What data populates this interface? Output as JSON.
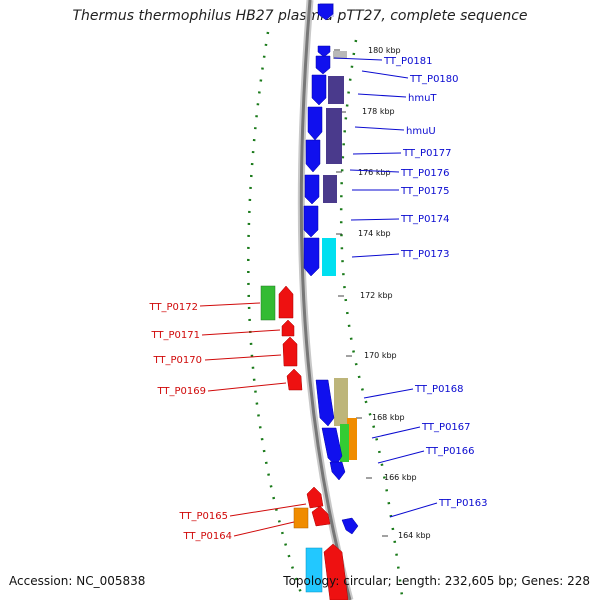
{
  "title": "Thermus thermophilus HB27 plasmid pTT27, complete sequence",
  "accession": "Accession: NC_005838",
  "stats": "Topology: circular; Length: 232,605 bp; Genes: 228",
  "colors": {
    "forward_label": "#0a0ad0",
    "reverse_label": "#d00a0a",
    "gc_skew": "#1a7a1a",
    "backbone": "#888888"
  },
  "tick_labels": [
    "180 kbp",
    "178 kbp",
    "176 kbp",
    "174 kbp",
    "172 kbp",
    "170 kbp",
    "168 kbp",
    "166 kbp",
    "164 kbp"
  ],
  "forward_genes": [
    "TT_P0181",
    "TT_P0180",
    "hmuT",
    "hmuU",
    "TT_P0177",
    "TT_P0176",
    "TT_P0175",
    "TT_P0174",
    "TT_P0173",
    "TT_P0168",
    "TT_P0167",
    "TT_P0166",
    "TT_P0163"
  ],
  "reverse_genes": [
    "TT_P0172",
    "TT_P0171",
    "TT_P0170",
    "TT_P0169",
    "TT_P0165",
    "TT_P0164"
  ]
}
